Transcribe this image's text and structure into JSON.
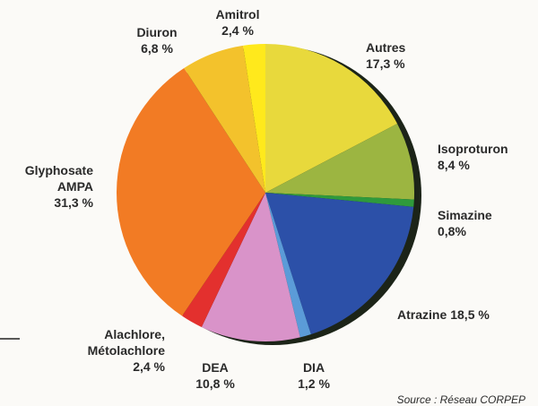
{
  "chart_data": {
    "type": "pie",
    "categories": [
      "Autres",
      "Isoproturon",
      "Simazine",
      "Atrazine",
      "DIA",
      "DEA",
      "Alachlore, Métolachlore",
      "Glyphosate AMPA",
      "Diuron",
      "Amitrol"
    ],
    "values": [
      17.3,
      8.4,
      0.8,
      18.5,
      1.2,
      10.8,
      2.4,
      31.3,
      6.8,
      2.4
    ],
    "value_labels": [
      "17,3 %",
      "8,4 %",
      "0,8%",
      "18,5 %",
      "1,2 %",
      "10,8 %",
      "2,4 %",
      "31,3 %",
      "6,8 %",
      "2,4 %"
    ],
    "colors": [
      "#e8d93c",
      "#9cb541",
      "#2f9a3c",
      "#2c50a8",
      "#5b9bd8",
      "#d993c9",
      "#e3302e",
      "#f27b24",
      "#f3c22c",
      "#ffe91c"
    ],
    "source": "Source : Réseau CORPEP"
  }
}
